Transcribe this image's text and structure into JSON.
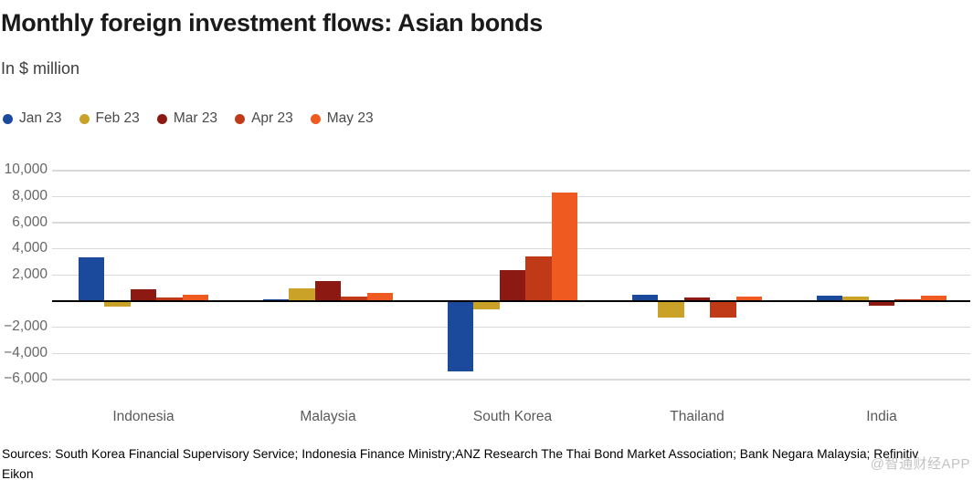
{
  "header": {
    "title": "Monthly foreign investment flows: Asian bonds",
    "subtitle": "In $ million"
  },
  "chart_data": {
    "type": "bar",
    "title": "Monthly foreign investment flows: Asian bonds",
    "subtitle": "In $ million",
    "categories": [
      "Indonesia",
      "Malaysia",
      "South Korea",
      "Thailand",
      "India"
    ],
    "series": [
      {
        "name": "Jan 23",
        "color": "#1b4a9c",
        "values": [
          3350,
          150,
          -5400,
          500,
          450
        ]
      },
      {
        "name": "Feb 23",
        "color": "#c9a227",
        "values": [
          -400,
          1000,
          -650,
          -1280,
          350
        ]
      },
      {
        "name": "Mar 23",
        "color": "#8c1a12",
        "values": [
          900,
          1550,
          2350,
          280,
          -350
        ]
      },
      {
        "name": "Apr 23",
        "color": "#c03a18",
        "values": [
          280,
          350,
          3400,
          -1240,
          100
        ]
      },
      {
        "name": "May 23",
        "color": "#ee5a1f",
        "values": [
          500,
          650,
          8300,
          350,
          400
        ]
      }
    ],
    "ylim": [
      -6000,
      10000
    ],
    "ytick_step": 2000,
    "grid": true,
    "legend_position": "top",
    "y_ticks": [
      {
        "v": 10000,
        "label": "10,000"
      },
      {
        "v": 8000,
        "label": "8,000"
      },
      {
        "v": 6000,
        "label": "6,000"
      },
      {
        "v": 4000,
        "label": "4,000"
      },
      {
        "v": 2000,
        "label": "2,000"
      },
      {
        "v": 0,
        "label": ""
      },
      {
        "v": -2000,
        "label": "−2,000"
      },
      {
        "v": -4000,
        "label": "−4,000"
      },
      {
        "v": -6000,
        "label": "−6,000"
      }
    ]
  },
  "source": {
    "text": "Sources: South Korea Financial Supervisory Service; Indonesia Finance Ministry;ANZ Research The Thai Bond Market Association; Bank Negara Malaysia; Refinitiv Eikon"
  },
  "watermark": {
    "text": "@智通财经APP"
  }
}
